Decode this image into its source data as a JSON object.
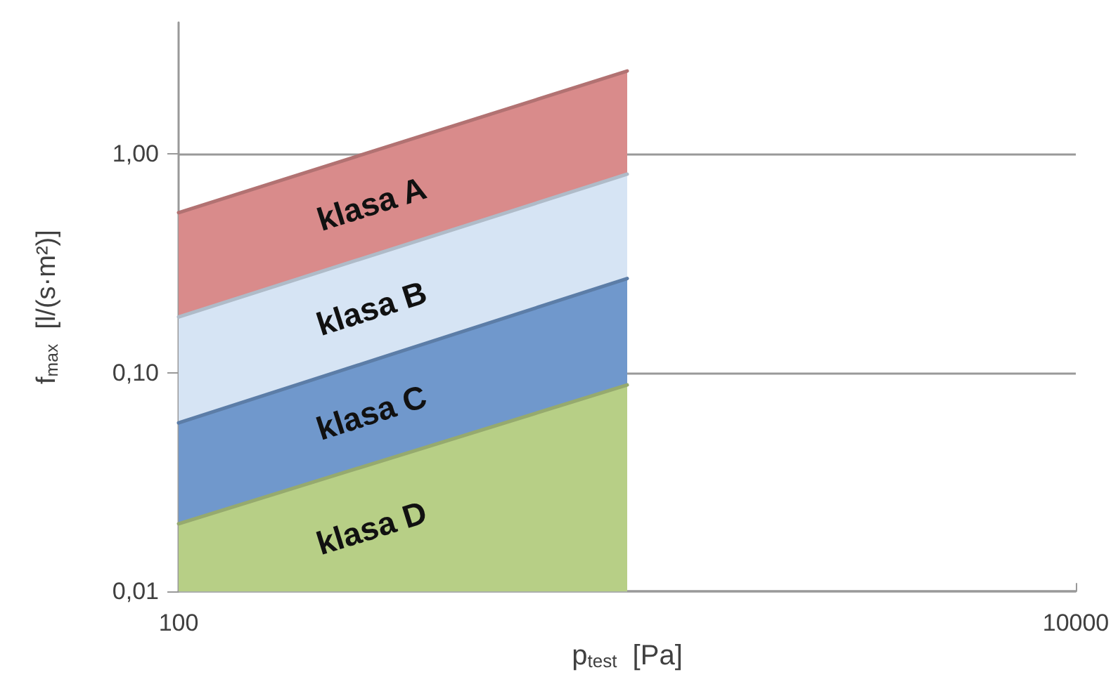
{
  "chart_data": {
    "type": "area",
    "xlabel": "p$_{test}$  [Pa]",
    "ylabel": "f$_{max}$  [l/(s·m²)]",
    "log": "xy",
    "xlim": [
      100,
      10000
    ],
    "xticks": [
      100,
      10000
    ],
    "ylim": [
      0.01,
      4
    ],
    "yticks": [
      {
        "value": 0.01,
        "label": "0,01"
      },
      {
        "value": 0.1,
        "label": "0,10"
      },
      {
        "value": 1,
        "label": "1,00"
      }
    ],
    "grid": "y",
    "marker": "none",
    "line_style": "solid",
    "x": [
      100,
      1000
    ],
    "series": [
      {
        "name": "klasa A",
        "color": "#d98b8b",
        "values": [
          0.54,
          2.4
        ]
      },
      {
        "name": "klasa B",
        "color": "#d6e4f4",
        "values": [
          0.18,
          0.81
        ]
      },
      {
        "name": "klasa C",
        "color": "#7098cc",
        "values": [
          0.059,
          0.27
        ]
      },
      {
        "name": "klasa D",
        "color": "#b7cf86",
        "values": [
          0.0204,
          0.088
        ]
      }
    ]
  }
}
